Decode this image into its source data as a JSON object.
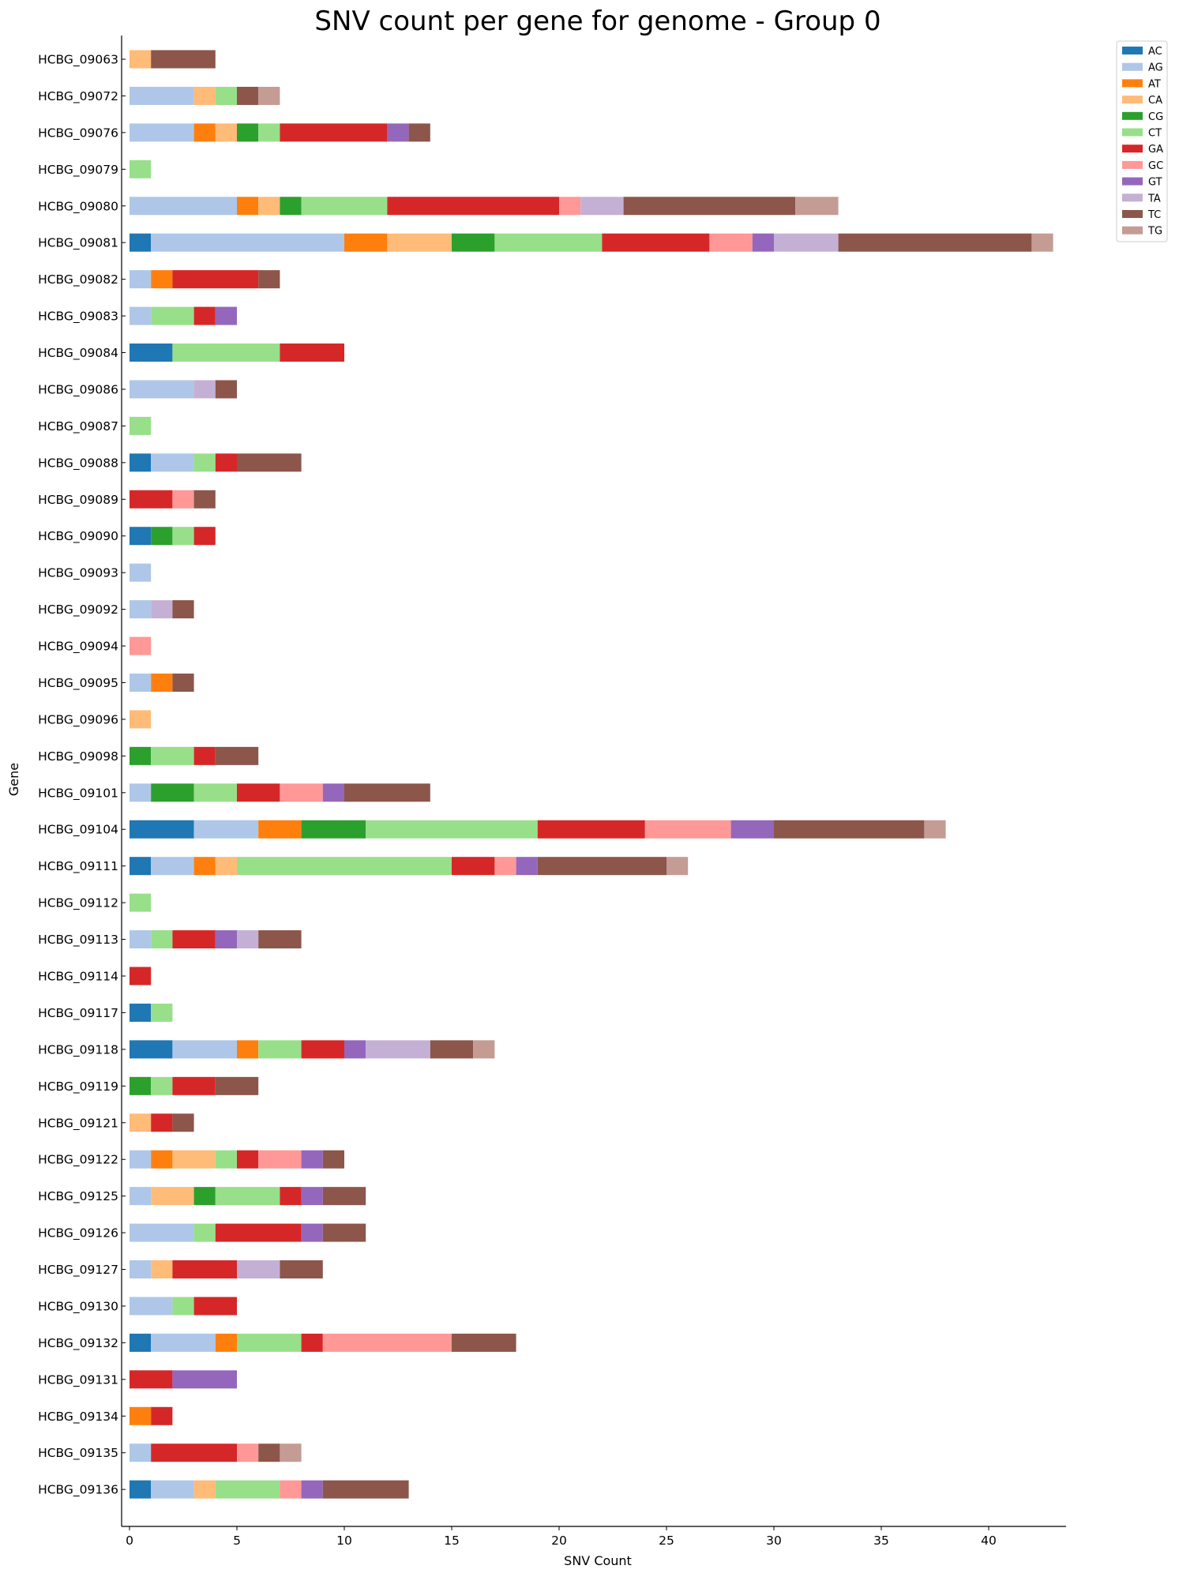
{
  "chart_data": {
    "type": "bar",
    "orientation": "horizontal",
    "stacked": true,
    "title": "SNV count per gene for genome - Group 0",
    "xlabel": "SNV Count",
    "ylabel": "Gene",
    "xlim": [
      0,
      43.5
    ],
    "xticks": [
      0,
      5,
      10,
      15,
      20,
      25,
      30,
      35,
      40
    ],
    "grid": false,
    "legend_position": "outside-top-right",
    "categories": [
      "HCBG_09063",
      "HCBG_09072",
      "HCBG_09076",
      "HCBG_09079",
      "HCBG_09080",
      "HCBG_09081",
      "HCBG_09082",
      "HCBG_09083",
      "HCBG_09084",
      "HCBG_09086",
      "HCBG_09087",
      "HCBG_09088",
      "HCBG_09089",
      "HCBG_09090",
      "HCBG_09093",
      "HCBG_09092",
      "HCBG_09094",
      "HCBG_09095",
      "HCBG_09096",
      "HCBG_09098",
      "HCBG_09101",
      "HCBG_09104",
      "HCBG_09111",
      "HCBG_09112",
      "HCBG_09113",
      "HCBG_09114",
      "HCBG_09117",
      "HCBG_09118",
      "HCBG_09119",
      "HCBG_09121",
      "HCBG_09122",
      "HCBG_09125",
      "HCBG_09126",
      "HCBG_09127",
      "HCBG_09130",
      "HCBG_09132",
      "HCBG_09131",
      "HCBG_09134",
      "HCBG_09135",
      "HCBG_09136"
    ],
    "series": [
      {
        "name": "AC",
        "color": "#1f77b4",
        "values": [
          0,
          0,
          0,
          0,
          0,
          1,
          0,
          0,
          2,
          0,
          0,
          1,
          0,
          1,
          0,
          0,
          0,
          0,
          0,
          0,
          0,
          3,
          1,
          0,
          0,
          0,
          1,
          2,
          0,
          0,
          0,
          0,
          0,
          0,
          0,
          1,
          0,
          0,
          0,
          1
        ]
      },
      {
        "name": "AG",
        "color": "#aec7e8",
        "values": [
          0,
          3,
          3,
          0,
          5,
          9,
          1,
          1,
          0,
          3,
          0,
          2,
          0,
          0,
          1,
          1,
          0,
          1,
          0,
          0,
          1,
          3,
          2,
          0,
          1,
          0,
          0,
          3,
          0,
          0,
          1,
          1,
          3,
          1,
          2,
          3,
          0,
          0,
          1,
          2
        ]
      },
      {
        "name": "AT",
        "color": "#ff7f0e",
        "values": [
          0,
          0,
          1,
          0,
          1,
          2,
          1,
          0,
          0,
          0,
          0,
          0,
          0,
          0,
          0,
          0,
          0,
          1,
          0,
          0,
          0,
          2,
          1,
          0,
          0,
          0,
          0,
          1,
          0,
          0,
          1,
          0,
          0,
          0,
          0,
          1,
          0,
          1,
          0,
          0
        ]
      },
      {
        "name": "CA",
        "color": "#ffbb78",
        "values": [
          1,
          1,
          1,
          0,
          1,
          3,
          0,
          0,
          0,
          0,
          0,
          0,
          0,
          0,
          0,
          0,
          0,
          0,
          1,
          0,
          0,
          0,
          1,
          0,
          0,
          0,
          0,
          0,
          0,
          1,
          2,
          2,
          0,
          1,
          0,
          0,
          0,
          0,
          0,
          1
        ]
      },
      {
        "name": "CG",
        "color": "#2ca02c",
        "values": [
          0,
          0,
          1,
          0,
          1,
          2,
          0,
          0,
          0,
          0,
          0,
          0,
          0,
          1,
          0,
          0,
          0,
          0,
          0,
          1,
          2,
          3,
          0,
          0,
          0,
          0,
          0,
          0,
          1,
          0,
          0,
          1,
          0,
          0,
          0,
          0,
          0,
          0,
          0,
          0
        ]
      },
      {
        "name": "CT",
        "color": "#98df8a",
        "values": [
          0,
          1,
          1,
          1,
          4,
          5,
          0,
          2,
          5,
          0,
          1,
          1,
          0,
          1,
          0,
          0,
          0,
          0,
          0,
          2,
          2,
          8,
          10,
          1,
          1,
          0,
          1,
          2,
          1,
          0,
          1,
          3,
          1,
          0,
          1,
          3,
          0,
          0,
          0,
          3
        ]
      },
      {
        "name": "GA",
        "color": "#d62728",
        "values": [
          0,
          0,
          5,
          0,
          8,
          5,
          4,
          1,
          3,
          0,
          0,
          1,
          2,
          1,
          0,
          0,
          0,
          0,
          0,
          1,
          2,
          5,
          2,
          0,
          2,
          1,
          0,
          2,
          2,
          1,
          1,
          1,
          4,
          3,
          2,
          1,
          2,
          1,
          4,
          0
        ]
      },
      {
        "name": "GC",
        "color": "#ff9896",
        "values": [
          0,
          0,
          0,
          0,
          1,
          2,
          0,
          0,
          0,
          0,
          0,
          0,
          1,
          0,
          0,
          0,
          1,
          0,
          0,
          0,
          2,
          4,
          1,
          0,
          0,
          0,
          0,
          0,
          0,
          0,
          2,
          0,
          0,
          0,
          0,
          6,
          0,
          0,
          1,
          1
        ]
      },
      {
        "name": "GT",
        "color": "#9467bd",
        "values": [
          0,
          0,
          1,
          0,
          0,
          1,
          0,
          1,
          0,
          0,
          0,
          0,
          0,
          0,
          0,
          0,
          0,
          0,
          0,
          0,
          1,
          2,
          1,
          0,
          1,
          0,
          0,
          1,
          0,
          0,
          1,
          1,
          1,
          0,
          0,
          0,
          3,
          0,
          0,
          1
        ]
      },
      {
        "name": "TA",
        "color": "#c5b0d5",
        "values": [
          0,
          0,
          0,
          0,
          2,
          3,
          0,
          0,
          0,
          1,
          0,
          0,
          0,
          0,
          0,
          1,
          0,
          0,
          0,
          0,
          0,
          0,
          0,
          0,
          1,
          0,
          0,
          3,
          0,
          0,
          0,
          0,
          0,
          2,
          0,
          0,
          0,
          0,
          0,
          0
        ]
      },
      {
        "name": "TC",
        "color": "#8c564b",
        "values": [
          3,
          1,
          1,
          0,
          8,
          9,
          1,
          0,
          0,
          1,
          0,
          3,
          1,
          0,
          0,
          1,
          0,
          1,
          0,
          2,
          4,
          7,
          6,
          0,
          2,
          0,
          0,
          2,
          2,
          1,
          1,
          2,
          2,
          2,
          0,
          3,
          0,
          0,
          1,
          4
        ]
      },
      {
        "name": "TG",
        "color": "#c49c94",
        "values": [
          0,
          1,
          0,
          0,
          2,
          1,
          0,
          0,
          0,
          0,
          0,
          0,
          0,
          0,
          0,
          0,
          0,
          0,
          0,
          0,
          0,
          1,
          1,
          0,
          0,
          0,
          0,
          1,
          0,
          0,
          0,
          0,
          0,
          0,
          0,
          0,
          0,
          0,
          1,
          0
        ]
      }
    ]
  }
}
